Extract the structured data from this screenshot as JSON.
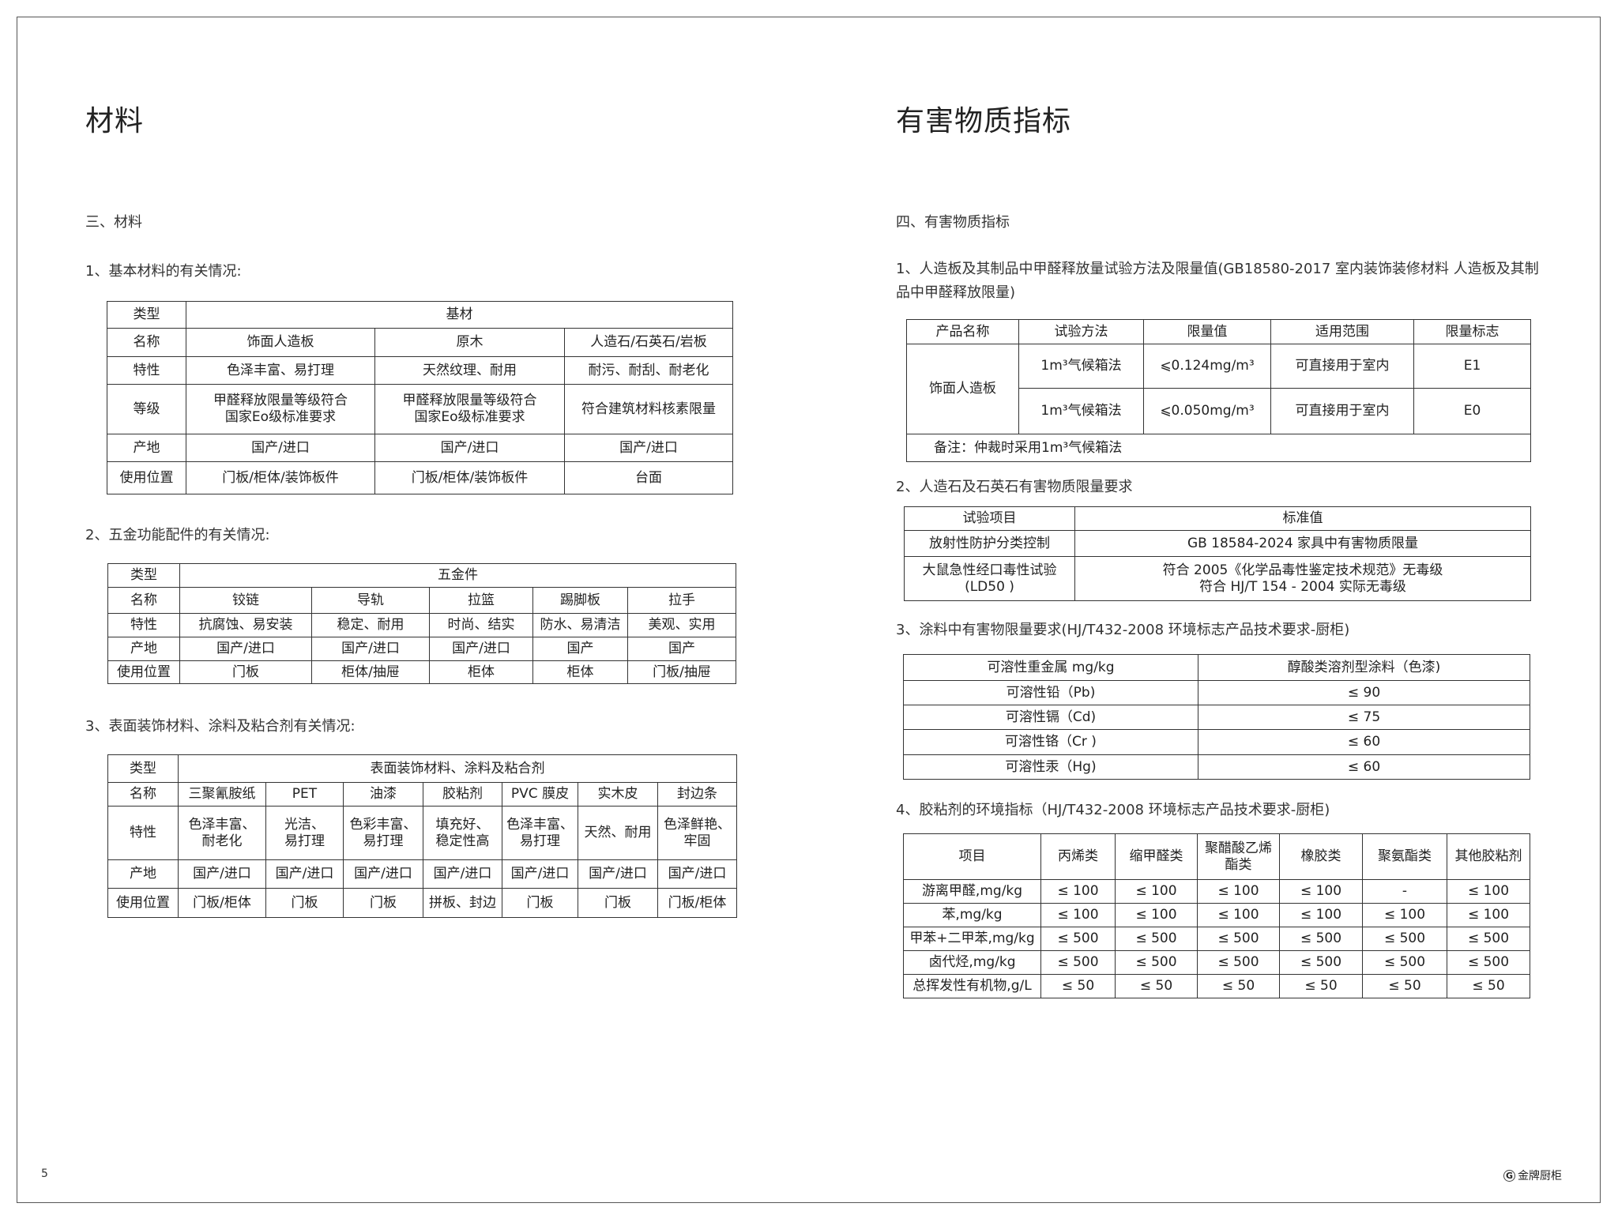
{
  "left": {
    "page_title": "材料",
    "section_title": "三、材料",
    "sub1": "1、基本材料的有关情况:",
    "sub2": "2、五金功能配件的有关情况:",
    "sub3": "3、表面装饰材料、涂料及粘合剂有关情况:",
    "table1": [
      [
        "类型",
        {
          "t": "基材",
          "cs": 3
        }
      ],
      [
        "名称",
        "饰面人造板",
        "原木",
        "人造石/石英石/岩板"
      ],
      [
        "特性",
        "色泽丰富、易打理",
        "天然纹理、耐用",
        "耐污、耐刮、耐老化"
      ],
      [
        "等级",
        "甲醛释放限量等级符合\n国家Eo级标准要求",
        "甲醛释放限量等级符合\n国家Eo级标准要求",
        "符合建筑材料核素限量"
      ],
      [
        "产地",
        "国产/进口",
        "国产/进口",
        "国产/进口"
      ],
      [
        "使用位置",
        "门板/柜体/装饰板件",
        "门板/柜体/装饰板件",
        "台面"
      ]
    ],
    "table2": [
      [
        "类型",
        {
          "t": "五金件",
          "cs": 5
        }
      ],
      [
        "名称",
        "铰链",
        "导轨",
        "拉篮",
        "踢脚板",
        "拉手"
      ],
      [
        "特性",
        "抗腐蚀、易安装",
        "稳定、耐用",
        "时尚、结实",
        "防水、易清洁",
        "美观、实用"
      ],
      [
        "产地",
        "国产/进口",
        "国产/进口",
        "国产/进口",
        "国产",
        "国产"
      ],
      [
        "使用位置",
        "门板",
        "柜体/抽屉",
        "柜体",
        "柜体",
        "门板/抽屉"
      ]
    ],
    "table3": [
      [
        "类型",
        {
          "t": "表面装饰材料、涂料及粘合剂",
          "cs": 7
        }
      ],
      [
        "名称",
        "三聚氰胺纸",
        "PET",
        "油漆",
        "胶粘剂",
        "PVC  膜皮",
        "实木皮",
        "封边条"
      ],
      [
        "特性",
        "色泽丰富、\n耐老化",
        "光洁、\n易打理",
        "色彩丰富、\n易打理",
        "填充好、\n稳定性高",
        "色泽丰富、\n易打理",
        "天然、耐用",
        "色泽鲜艳、\n牢固"
      ],
      [
        "产地",
        "国产/进口",
        "国产/进口",
        "国产/进口",
        "国产/进口",
        "国产/进口",
        "国产/进口",
        "国产/进口"
      ],
      [
        "使用位置",
        "门板/柜体",
        "门板",
        "门板",
        "拼板、封边",
        "门板",
        "门板",
        "门板/柜体"
      ]
    ]
  },
  "right": {
    "page_title": "有害物质指标",
    "section_title": "四、有害物质指标",
    "sub1": "1、人造板及其制品中甲醛释放量试验方法及限量值(GB18580-2017 室内装饰装修材料 人造板及其制品中甲醛释放限量)",
    "sub2": "2、人造石及石英石有害物质限量要求",
    "sub3": "3、涂料中有害物限量要求(HJ/T432-2008 环境标志产品技术要求-厨柜)",
    "sub4": "4、胶粘剂的环境指标（HJ/T432-2008 环境标志产品技术要求-厨柜)",
    "table1": [
      [
        "产品名称",
        "试验方法",
        "限量值",
        "适用范围",
        "限量标志"
      ],
      [
        {
          "t": "饰面人造板",
          "rs": 2
        },
        "1m³气候箱法",
        "⩽0.124mg/m³",
        "可直接用于室内",
        "E1"
      ],
      [
        "1m³气候箱法",
        "⩽0.050mg/m³",
        "可直接用于室内",
        "E0"
      ],
      [
        {
          "t": "备注：仲裁时采用1m³气候箱法",
          "cs": 5,
          "left": true
        }
      ]
    ],
    "table2": [
      [
        "试验项目",
        "标准值"
      ],
      [
        "放射性防护分类控制",
        "GB 18584-2024 家具中有害物质限量"
      ],
      [
        "大鼠急性经口毒性试验\n(LD50 )",
        "符合 2005《化学品毒性鉴定技术规范》无毒级\n符合 HJ/T 154 - 2004  实际无毒级"
      ]
    ],
    "table3": [
      [
        "可溶性重金属 mg/kg",
        "醇酸类溶剂型涂料（色漆)"
      ],
      [
        "可溶性铅（Pb)",
        "≤ 90"
      ],
      [
        "可溶性镉（Cd)",
        "≤ 75"
      ],
      [
        "可溶性铬（Cr )",
        "≤ 60"
      ],
      [
        "可溶性汞（Hg)",
        "≤ 60"
      ]
    ],
    "table4": [
      [
        "项目",
        "丙烯类",
        "缩甲醛类",
        "聚醋酸乙烯\n酯类",
        "橡胶类",
        "聚氨酯类",
        "其他胶粘剂"
      ],
      [
        "游离甲醛,mg/kg",
        "≤ 100",
        "≤ 100",
        "≤ 100",
        "≤ 100",
        "-",
        "≤ 100"
      ],
      [
        "苯,mg/kg",
        "≤ 100",
        "≤ 100",
        "≤ 100",
        "≤ 100",
        "≤ 100",
        "≤ 100"
      ],
      [
        "甲苯+二甲苯,mg/kg",
        "≤ 500",
        "≤ 500",
        "≤ 500",
        "≤ 500",
        "≤ 500",
        "≤ 500"
      ],
      [
        "卤代烃,mg/kg",
        "≤ 500",
        "≤ 500",
        "≤ 500",
        "≤ 500",
        "≤ 500",
        "≤ 500"
      ],
      [
        "总挥发性有机物,g/L",
        "≤ 50",
        "≤ 50",
        "≤ 50",
        "≤ 50",
        "≤ 50",
        "≤ 50"
      ]
    ]
  },
  "footer": {
    "page_number": "5",
    "logo_mark": "G",
    "logo_text": "金牌厨柜"
  }
}
